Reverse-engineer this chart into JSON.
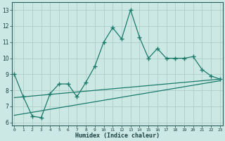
{
  "x": [
    0,
    1,
    2,
    3,
    4,
    5,
    6,
    7,
    8,
    9,
    10,
    11,
    12,
    13,
    14,
    15,
    16,
    17,
    18,
    19,
    20,
    21,
    22,
    23
  ],
  "y_main": [
    9.0,
    7.6,
    6.4,
    6.3,
    7.8,
    8.4,
    8.4,
    7.6,
    8.5,
    9.5,
    11.0,
    11.9,
    11.2,
    13.0,
    11.3,
    10.0,
    10.6,
    10.0,
    10.0,
    10.0,
    10.1,
    9.3,
    8.9,
    8.7
  ],
  "trend1_x": [
    0,
    23
  ],
  "trend1_y": [
    7.55,
    8.7
  ],
  "trend2_x": [
    0,
    23
  ],
  "trend2_y": [
    6.45,
    8.6
  ],
  "line_color": "#1a7a6a",
  "bg_color": "#cce8e4",
  "grid_color": "#b0cec8",
  "xlabel": "Humidex (Indice chaleur)",
  "ylim": [
    5.8,
    13.5
  ],
  "xlim": [
    -0.3,
    23.3
  ],
  "yticks": [
    6,
    7,
    8,
    9,
    10,
    11,
    12,
    13
  ],
  "xticks": [
    0,
    1,
    2,
    3,
    4,
    5,
    6,
    7,
    8,
    9,
    10,
    11,
    12,
    13,
    14,
    15,
    16,
    17,
    18,
    19,
    20,
    21,
    22,
    23
  ],
  "xtick_labels": [
    "0",
    "1",
    "2",
    "3",
    "4",
    "5",
    "6",
    "7",
    "8",
    "9",
    "10",
    "11",
    "12",
    "13",
    "14",
    "15",
    "16",
    "17",
    "18",
    "19",
    "20",
    "21",
    "22",
    "23"
  ]
}
